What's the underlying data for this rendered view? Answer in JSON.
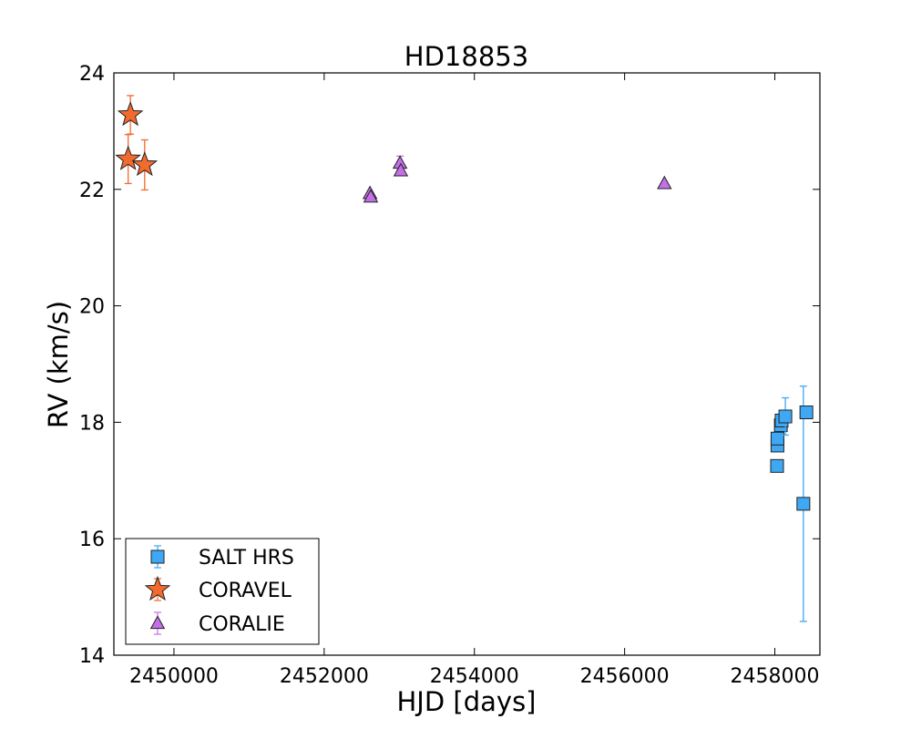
{
  "chart_data": {
    "type": "scatter",
    "title": "HD18853",
    "xlabel": "HJD [days]",
    "ylabel": "RV (km/s)",
    "xlim": [
      2449200,
      2458600
    ],
    "ylim": [
      14,
      24
    ],
    "x_ticks": [
      2450000,
      2452000,
      2454000,
      2456000,
      2458000
    ],
    "x_tick_labels": [
      "2450000",
      "2452000",
      "2454000",
      "2456000",
      "2458000"
    ],
    "y_ticks": [
      14,
      16,
      18,
      20,
      22,
      24
    ],
    "y_tick_labels": [
      "14",
      "16",
      "18",
      "20",
      "22",
      "24"
    ],
    "grid": false,
    "legend_position": "lower-left",
    "series": [
      {
        "name": "SALT HRS",
        "marker": "square",
        "color": "#3fa8f4",
        "error_color": "#3fa8f4",
        "points": [
          {
            "x": 2458030,
            "y": 17.25,
            "err": 0.0
          },
          {
            "x": 2458035,
            "y": 17.6,
            "err": 0.0
          },
          {
            "x": 2458035,
            "y": 17.72,
            "err": 0.0
          },
          {
            "x": 2458080,
            "y": 17.95,
            "err": 0.0
          },
          {
            "x": 2458090,
            "y": 18.03,
            "err": 0.0
          },
          {
            "x": 2458140,
            "y": 18.1,
            "err": 0.32
          },
          {
            "x": 2458380,
            "y": 16.6,
            "err": 2.02
          },
          {
            "x": 2458420,
            "y": 18.17,
            "err": 0.0
          }
        ]
      },
      {
        "name": "CORAVEL",
        "marker": "star",
        "color": "#f26a2e",
        "error_color": "#f26a2e",
        "points": [
          {
            "x": 2449390,
            "y": 22.52,
            "err": 0.42
          },
          {
            "x": 2449420,
            "y": 23.28,
            "err": 0.33
          },
          {
            "x": 2449610,
            "y": 22.42,
            "err": 0.43
          }
        ]
      },
      {
        "name": "CORALIE",
        "marker": "triangle",
        "color": "#c46ee8",
        "error_color": "#c46ee8",
        "points": [
          {
            "x": 2452610,
            "y": 21.93,
            "err": 0.0
          },
          {
            "x": 2452620,
            "y": 21.87,
            "err": 0.0
          },
          {
            "x": 2453010,
            "y": 22.45,
            "err": 0.12
          },
          {
            "x": 2453020,
            "y": 22.32,
            "err": 0.0
          },
          {
            "x": 2456530,
            "y": 22.1,
            "err": 0.0
          }
        ]
      }
    ]
  }
}
